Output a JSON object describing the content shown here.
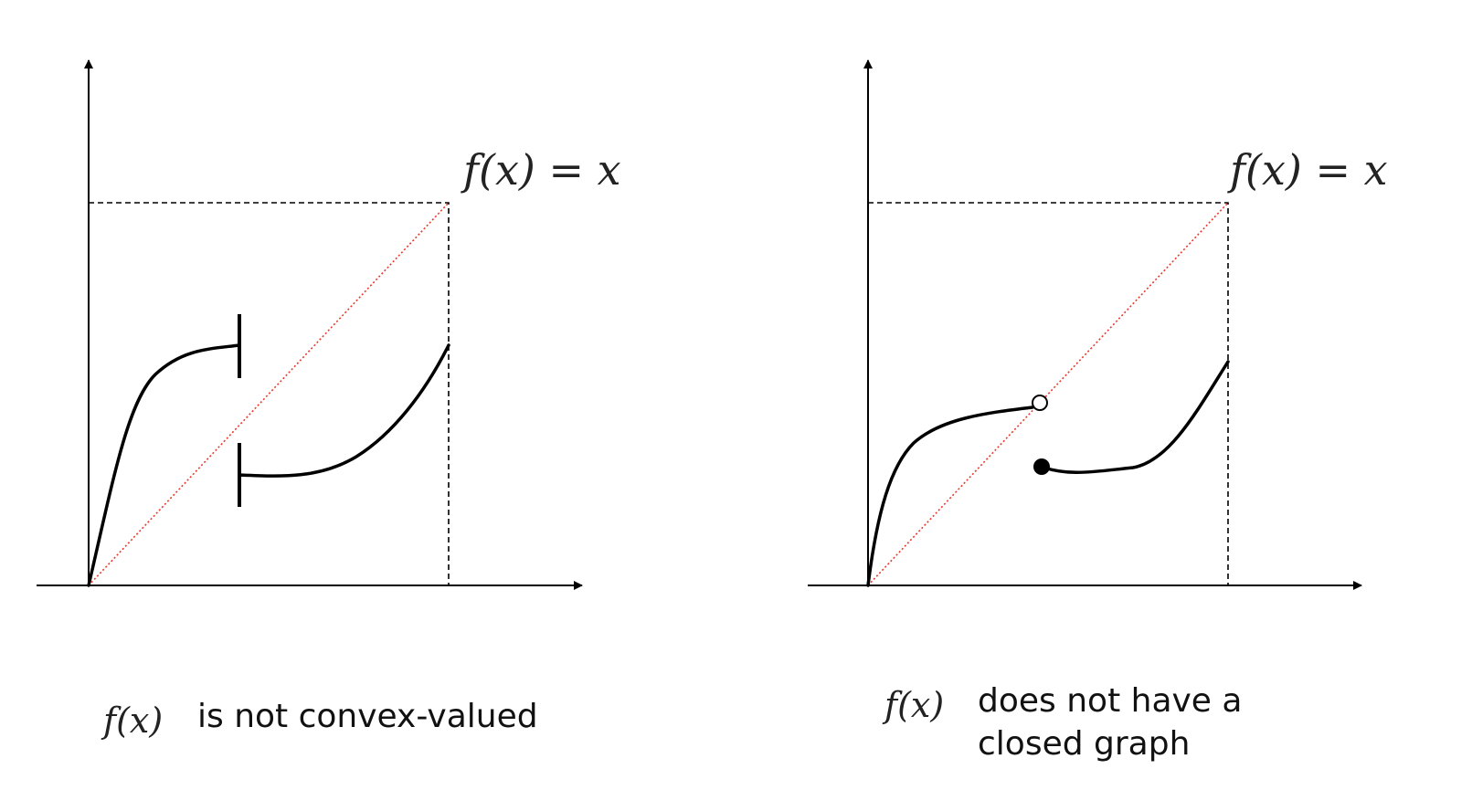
{
  "panels": [
    {
      "diagonal_label": "f(x) = x",
      "caption_math": "f(x)",
      "caption_lines": [
        "is not convex-valued"
      ]
    },
    {
      "diagonal_label": "f(x) = x",
      "caption_math": "f(x)",
      "caption_lines": [
        "does not have a",
        "closed graph"
      ]
    }
  ],
  "colors": {
    "axis": "#000000",
    "curve": "#000000",
    "diagonal": "#e8392c",
    "dashed": "#000000"
  }
}
